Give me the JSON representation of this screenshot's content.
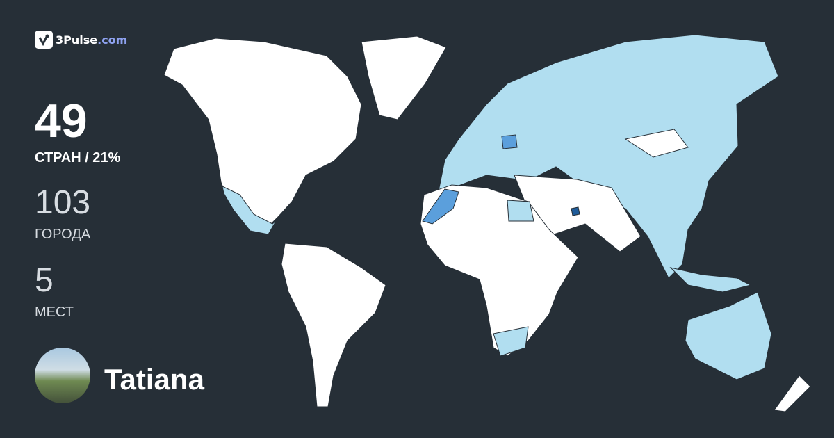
{
  "brand": {
    "name": "3Pulse",
    "tld": ".com",
    "icon": "checkmark-pulse-icon"
  },
  "stats": {
    "countries": {
      "value": "49",
      "label": "СТРАН / 21%"
    },
    "cities": {
      "value": "103",
      "label": "ГОРОДА"
    },
    "places": {
      "value": "5",
      "label": "МЕСТ"
    }
  },
  "user": {
    "name": "Tatiana"
  },
  "colors": {
    "background": "#262f37",
    "unvisited": "#ffffff",
    "visited": "#b1def0",
    "visited_more": "#5b9fdc",
    "visited_most": "#1f5c9a",
    "brand_tld": "#8ea2f0"
  }
}
